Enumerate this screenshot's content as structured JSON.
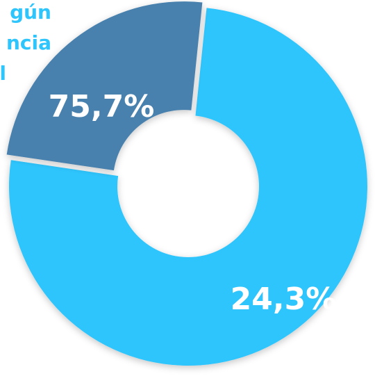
{
  "chart_data": {
    "type": "pie",
    "title_lines": [
      "gún",
      "ncia",
      "l"
    ],
    "categories": [
      "",
      ""
    ],
    "values": [
      75.7,
      24.3
    ],
    "data_labels": [
      "75,7%",
      "24,3%"
    ],
    "colors": [
      "#2ec5fd",
      "#4881ae"
    ],
    "title_color": "#2ec5fd",
    "hole": true,
    "exploded": [
      false,
      true
    ]
  }
}
